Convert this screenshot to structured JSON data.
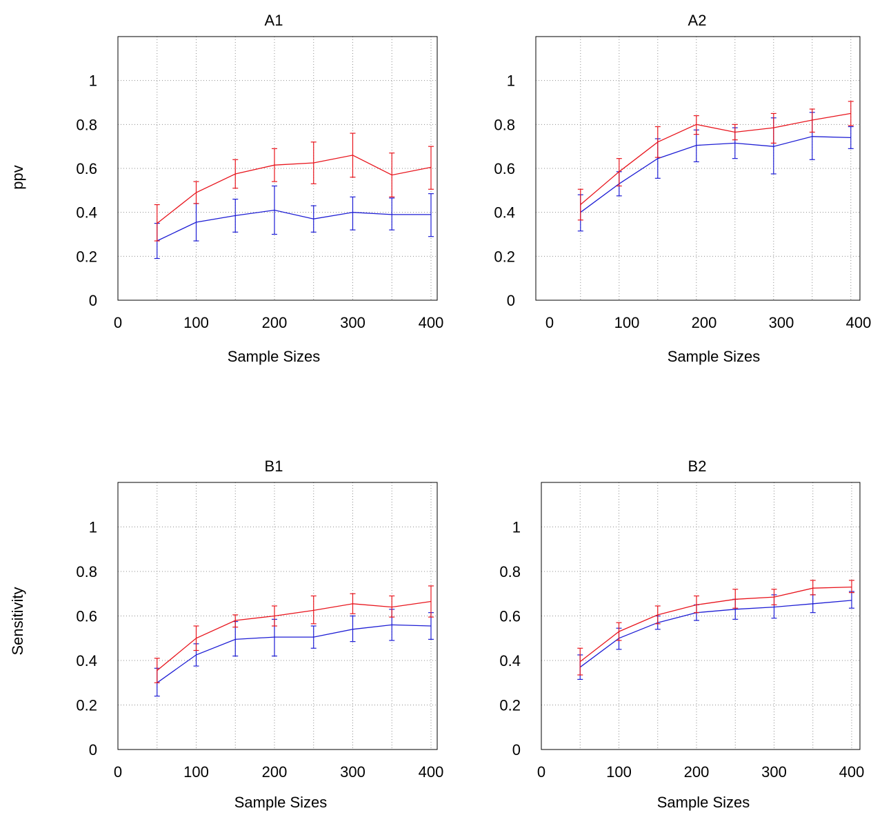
{
  "figure": {
    "row_labels": [
      "ppv",
      "Sensitivity"
    ]
  },
  "colors": {
    "series_a": "#e8141c",
    "series_b": "#1c1cd4",
    "grid": "#8c8c8c"
  },
  "chart_data": [
    {
      "type": "line",
      "title": "A1",
      "xlabel": "Sample Sizes",
      "ylabel": "ppv",
      "xlim": [
        0,
        400
      ],
      "ylim": [
        0,
        1.2
      ],
      "xticks": [
        0,
        100,
        200,
        300,
        400
      ],
      "yticks": [
        0,
        0.2,
        0.4,
        0.6,
        0.8,
        1
      ],
      "grid": true,
      "x": [
        50,
        100,
        150,
        200,
        250,
        300,
        350,
        400
      ],
      "series": [
        {
          "color": "#e8141c",
          "values": [
            0.35,
            0.49,
            0.575,
            0.615,
            0.625,
            0.66,
            0.57,
            0.605
          ],
          "err_low": [
            0.27,
            0.44,
            0.51,
            0.54,
            0.53,
            0.56,
            0.47,
            0.505
          ],
          "err_high": [
            0.435,
            0.54,
            0.64,
            0.69,
            0.72,
            0.76,
            0.67,
            0.7
          ]
        },
        {
          "color": "#1c1cd4",
          "values": [
            0.27,
            0.355,
            0.385,
            0.41,
            0.37,
            0.4,
            0.39,
            0.39
          ],
          "err_low": [
            0.19,
            0.27,
            0.31,
            0.3,
            0.31,
            0.32,
            0.32,
            0.29
          ],
          "err_high": [
            0.35,
            0.44,
            0.46,
            0.52,
            0.43,
            0.47,
            0.465,
            0.485
          ]
        }
      ]
    },
    {
      "type": "line",
      "title": "A2",
      "xlabel": "Sample Sizes",
      "ylabel": "",
      "xlim": [
        0,
        400
      ],
      "ylim": [
        0,
        1.2
      ],
      "xticks": [
        0,
        100,
        200,
        300,
        400
      ],
      "yticks": [
        0,
        0.2,
        0.4,
        0.6,
        0.8,
        1
      ],
      "grid": true,
      "x": [
        40,
        90,
        140,
        190,
        240,
        290,
        340,
        390
      ],
      "series": [
        {
          "color": "#e8141c",
          "values": [
            0.435,
            0.585,
            0.72,
            0.8,
            0.765,
            0.785,
            0.82,
            0.85
          ],
          "err_low": [
            0.365,
            0.52,
            0.65,
            0.755,
            0.73,
            0.715,
            0.765,
            0.795
          ],
          "err_high": [
            0.505,
            0.645,
            0.79,
            0.84,
            0.8,
            0.85,
            0.87,
            0.905
          ]
        },
        {
          "color": "#1c1cd4",
          "values": [
            0.4,
            0.53,
            0.645,
            0.705,
            0.715,
            0.7,
            0.745,
            0.74
          ],
          "err_low": [
            0.315,
            0.475,
            0.555,
            0.63,
            0.645,
            0.575,
            0.64,
            0.69
          ],
          "err_high": [
            0.48,
            0.585,
            0.735,
            0.775,
            0.785,
            0.83,
            0.855,
            0.79
          ]
        }
      ]
    },
    {
      "type": "line",
      "title": "B1",
      "xlabel": "Sample Sizes",
      "ylabel": "Sensitivity",
      "xlim": [
        0,
        400
      ],
      "ylim": [
        0,
        1.2
      ],
      "xticks": [
        0,
        100,
        200,
        300,
        400
      ],
      "yticks": [
        0,
        0.2,
        0.4,
        0.6,
        0.8,
        1
      ],
      "grid": true,
      "x": [
        50,
        100,
        150,
        200,
        250,
        300,
        350,
        400
      ],
      "series": [
        {
          "color": "#e8141c",
          "values": [
            0.355,
            0.5,
            0.58,
            0.6,
            0.625,
            0.655,
            0.64,
            0.665
          ],
          "err_low": [
            0.3,
            0.445,
            0.55,
            0.555,
            0.565,
            0.61,
            0.595,
            0.595
          ],
          "err_high": [
            0.41,
            0.555,
            0.605,
            0.645,
            0.69,
            0.7,
            0.69,
            0.735
          ]
        },
        {
          "color": "#1c1cd4",
          "values": [
            0.3,
            0.425,
            0.495,
            0.505,
            0.505,
            0.54,
            0.56,
            0.555
          ],
          "err_low": [
            0.24,
            0.375,
            0.42,
            0.42,
            0.455,
            0.485,
            0.49,
            0.495
          ],
          "err_high": [
            0.365,
            0.475,
            0.575,
            0.585,
            0.555,
            0.6,
            0.63,
            0.615
          ]
        }
      ]
    },
    {
      "type": "line",
      "title": "B2",
      "xlabel": "Sample Sizes",
      "ylabel": "",
      "xlim": [
        0,
        400
      ],
      "ylim": [
        0,
        1.2
      ],
      "xticks": [
        0,
        100,
        200,
        300,
        400
      ],
      "yticks": [
        0,
        0.2,
        0.4,
        0.6,
        0.8,
        1
      ],
      "grid": true,
      "x": [
        50,
        100,
        150,
        200,
        250,
        300,
        350,
        400
      ],
      "series": [
        {
          "color": "#e8141c",
          "values": [
            0.395,
            0.53,
            0.605,
            0.65,
            0.675,
            0.685,
            0.725,
            0.73
          ],
          "err_low": [
            0.335,
            0.49,
            0.565,
            0.615,
            0.635,
            0.65,
            0.695,
            0.705
          ],
          "err_high": [
            0.455,
            0.57,
            0.645,
            0.69,
            0.72,
            0.72,
            0.76,
            0.76
          ]
        },
        {
          "color": "#1c1cd4",
          "values": [
            0.37,
            0.5,
            0.57,
            0.615,
            0.63,
            0.64,
            0.655,
            0.67
          ],
          "err_low": [
            0.315,
            0.45,
            0.54,
            0.58,
            0.585,
            0.59,
            0.615,
            0.635
          ],
          "err_high": [
            0.425,
            0.545,
            0.6,
            0.65,
            0.675,
            0.695,
            0.695,
            0.71
          ]
        }
      ]
    }
  ]
}
